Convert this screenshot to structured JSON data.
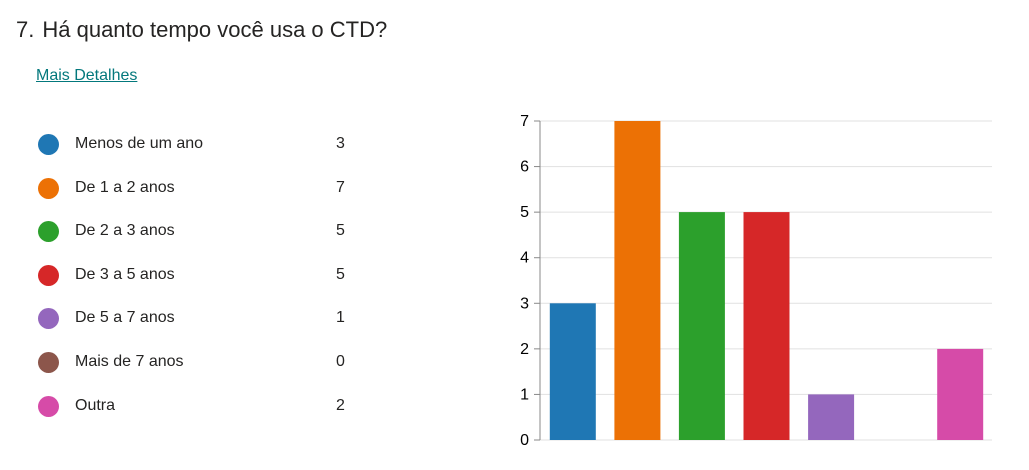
{
  "question": {
    "number": "7.",
    "text": "Há quanto tempo você usa o CTD?"
  },
  "details_link": "Mais Detalhes",
  "legend": [
    {
      "label": "Menos de um ano",
      "count": "3",
      "color": "#1f77b4"
    },
    {
      "label": "De 1 a 2 anos",
      "count": "7",
      "color": "#ec7105"
    },
    {
      "label": "De 2 a 3 anos",
      "count": "5",
      "color": "#2ca02c"
    },
    {
      "label": "De 3 a 5 anos",
      "count": "5",
      "color": "#d62728"
    },
    {
      "label": "De 5 a 7 anos",
      "count": "1",
      "color": "#9467bd"
    },
    {
      "label": "Mais de 7 anos",
      "count": "0",
      "color": "#8c564b"
    },
    {
      "label": "Outra",
      "count": "2",
      "color": "#d64ba8"
    }
  ],
  "chart_data": {
    "type": "bar",
    "categories": [
      "Menos de um ano",
      "De 1 a 2 anos",
      "De 2 a 3 anos",
      "De 3 a 5 anos",
      "De 5 a 7 anos",
      "Mais de 7 anos",
      "Outra"
    ],
    "values": [
      3,
      7,
      5,
      5,
      1,
      0,
      2
    ],
    "colors": [
      "#1f77b4",
      "#ec7105",
      "#2ca02c",
      "#d62728",
      "#9467bd",
      "#8c564b",
      "#d64ba8"
    ],
    "yticks": [
      "0",
      "1",
      "2",
      "3",
      "4",
      "5",
      "6",
      "7"
    ],
    "ylim": [
      0,
      7
    ],
    "grid": true,
    "title": "",
    "xlabel": "",
    "ylabel": ""
  }
}
